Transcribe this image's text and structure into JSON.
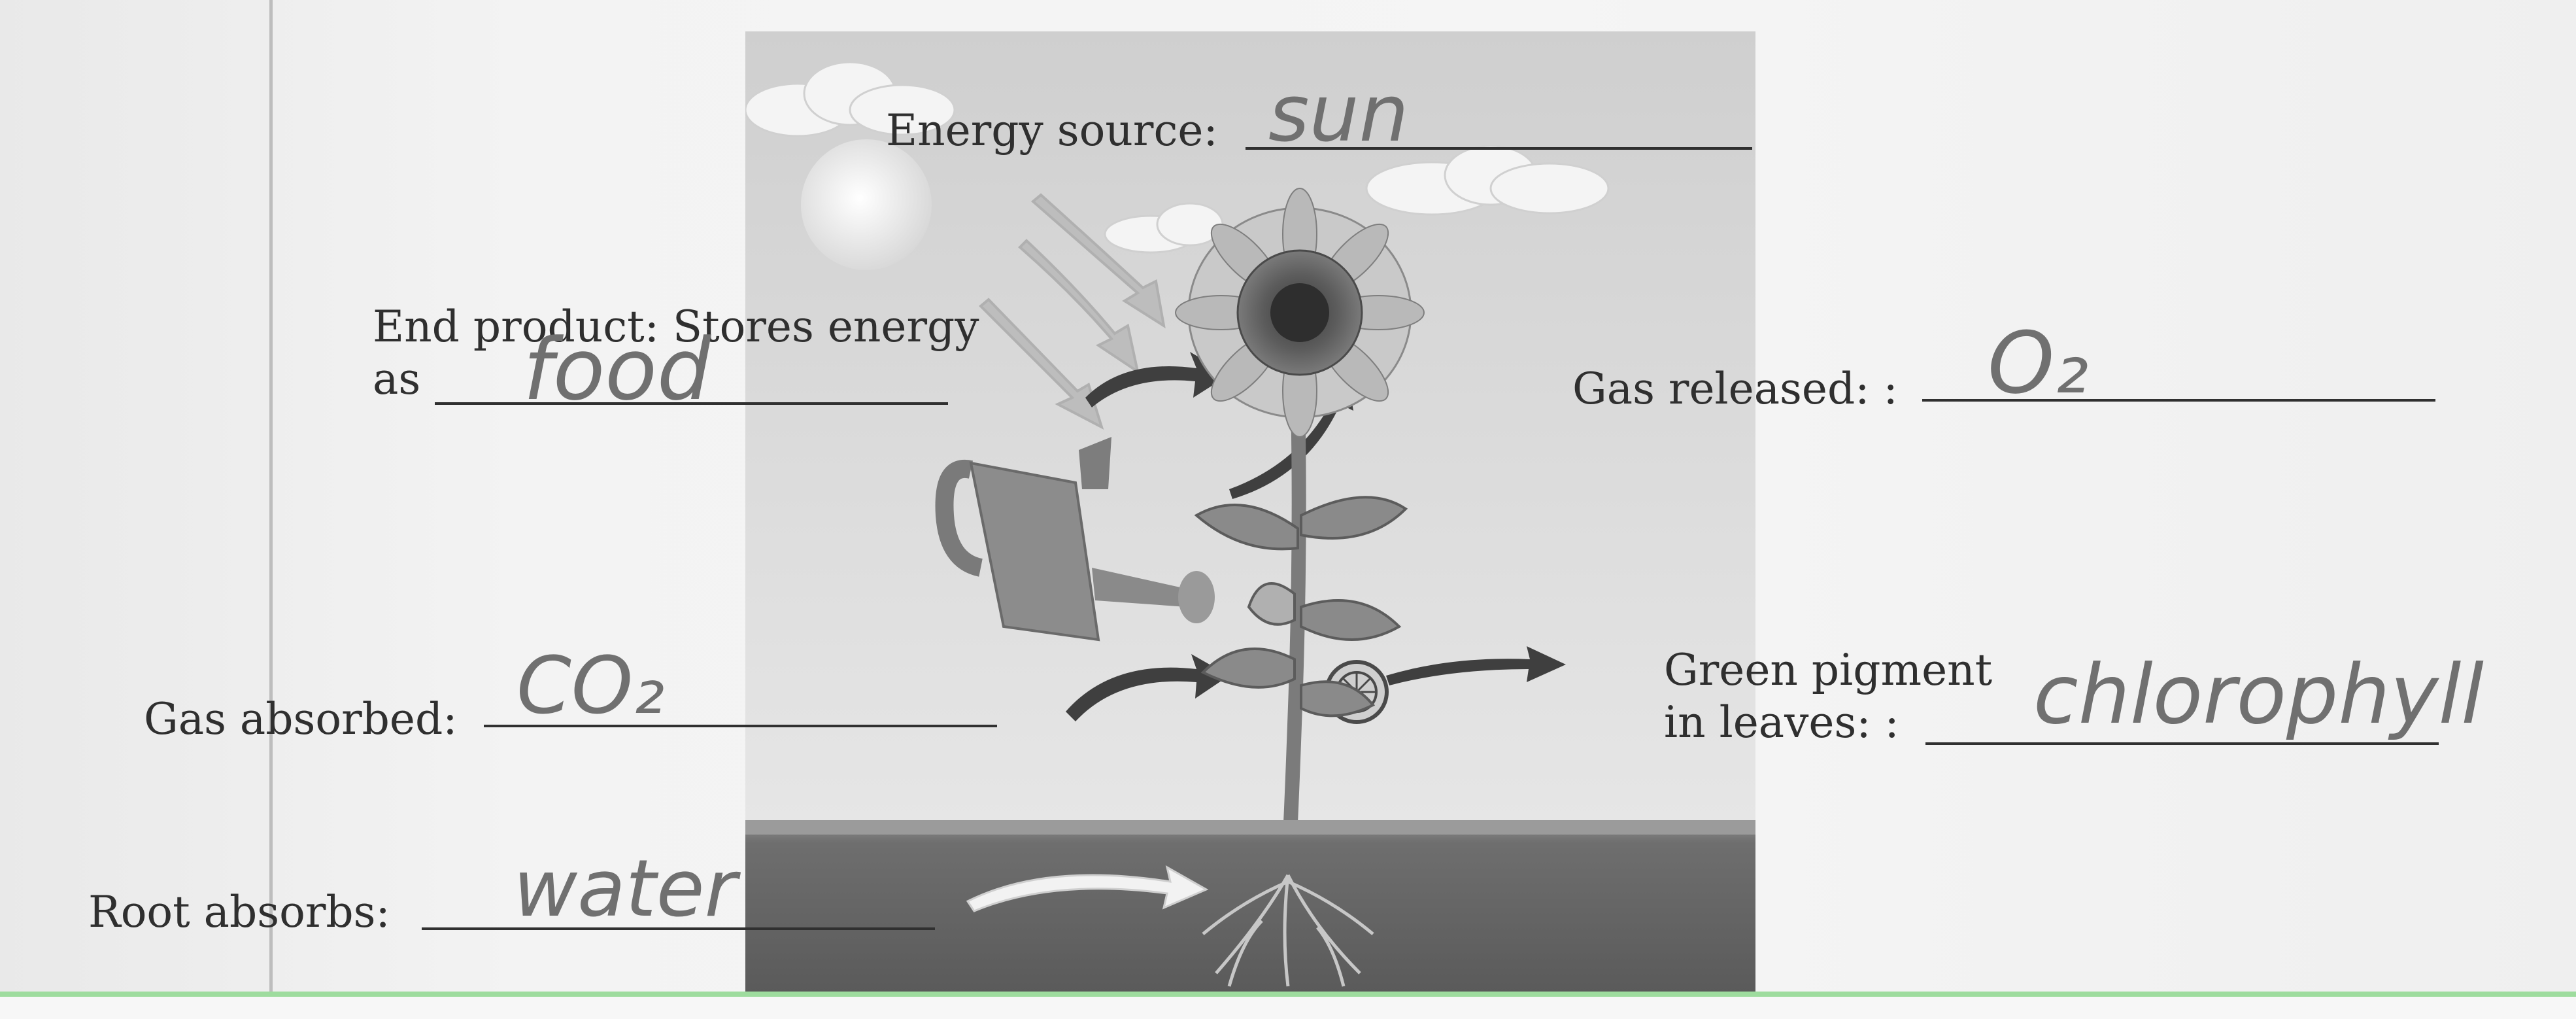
{
  "labels": {
    "energy_source": "Energy source:",
    "end_product": "End product: Stores energy\nas",
    "gas_released": "Gas released: :",
    "gas_absorbed": "Gas absorbed:",
    "green_pigment": "Green pigment\nin leaves: :",
    "root_absorbs": "Root absorbs:"
  },
  "answers": {
    "energy_source": "sun",
    "end_product": "food",
    "gas_released": "O₂",
    "gas_absorbed": "CO₂",
    "green_pigment": "chlorophyll",
    "root_absorbs": "water"
  },
  "colors": {
    "ink": "#707070",
    "print": "#2f2f2f",
    "margin_line": "#bdbdbd",
    "bottom_rule": "#9edc9e"
  }
}
